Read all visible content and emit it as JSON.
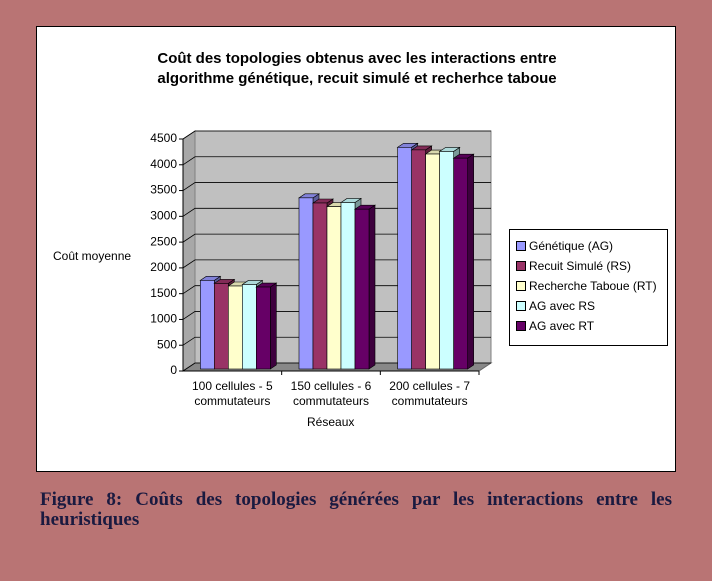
{
  "chart_data": {
    "type": "bar3d",
    "title": "Coût des topologies obtenus avec les interactions entre algorithme génétique, recuit simulé et recherhce taboue",
    "ylabel": "Coût moyenne",
    "xlabel": "Réseaux",
    "categories": [
      "100 cellules - 5 commutateurs",
      "150 cellules - 6 commutateurs",
      "200 cellules - 7 commutateurs"
    ],
    "series": [
      {
        "name": "Génétique (AG)",
        "color": "#9999ff",
        "values": [
          1720,
          3320,
          4300
        ]
      },
      {
        "name": "Recuit Simulé (RS)",
        "color": "#993366",
        "values": [
          1660,
          3220,
          4250
        ]
      },
      {
        "name": "Recherche Taboue (RT)",
        "color": "#ffffcc",
        "values": [
          1610,
          3150,
          4170
        ]
      },
      {
        "name": "AG avec RS",
        "color": "#ccffff",
        "values": [
          1640,
          3230,
          4220
        ]
      },
      {
        "name": "AG avec RT",
        "color": "#660066",
        "values": [
          1590,
          3100,
          4090
        ]
      }
    ],
    "ylim": [
      0,
      4500
    ],
    "yticks": [
      0,
      500,
      1000,
      1500,
      2000,
      2500,
      3000,
      3500,
      4000,
      4500
    ],
    "grid": true,
    "legend": "right"
  },
  "caption": "Figure 8: Coûts des topologies générées par les interactions entre les heuristiques"
}
